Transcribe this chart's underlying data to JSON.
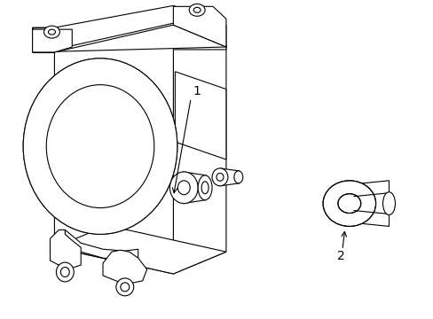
{
  "background_color": "#ffffff",
  "line_color": "#000000",
  "line_width": 0.8,
  "label1_text": "1",
  "label2_text": "2",
  "label_fontsize": 10,
  "fig_width": 4.89,
  "fig_height": 3.6,
  "fig_dpi": 100
}
